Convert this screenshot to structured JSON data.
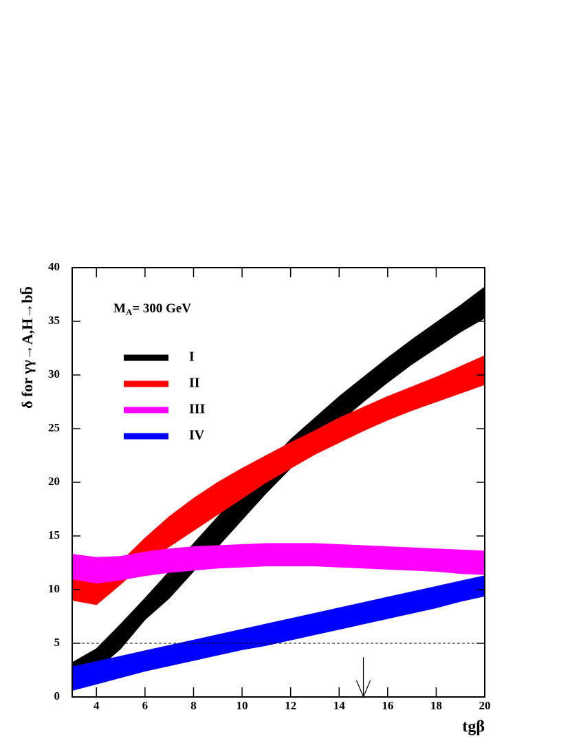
{
  "chart_data": {
    "type": "band",
    "annotation": {
      "main": "M",
      "sub": "A",
      "rest": "= 300 GeV"
    },
    "y_label": "δ  for  γγ→A,H→bb̄",
    "x_label": "tgβ",
    "x": [
      3,
      4,
      5,
      6,
      7,
      8,
      9,
      10,
      11,
      12,
      13,
      14,
      15,
      16,
      17,
      18,
      19,
      20
    ],
    "series": [
      {
        "name": "I",
        "color": "#000000",
        "lower": [
          0.8,
          2.5,
          4.5,
          7.2,
          9.2,
          11.7,
          14,
          16.5,
          19,
          21.3,
          23.5,
          25.6,
          27.5,
          29.3,
          31,
          32.5,
          34,
          35.3
        ],
        "upper": [
          3.2,
          4.5,
          6.8,
          9.2,
          11.7,
          14.3,
          16.8,
          19.2,
          21.6,
          24,
          26,
          28,
          29.8,
          31.6,
          33.3,
          34.9,
          36.5,
          38.2
        ]
      },
      {
        "name": "II",
        "color": "#ff0000",
        "lower": [
          9,
          8.6,
          10.5,
          12.5,
          14,
          15.5,
          17,
          18.5,
          20,
          21.3,
          22.6,
          23.7,
          24.8,
          25.8,
          26.7,
          27.5,
          28.3,
          29.1
        ],
        "upper": [
          11.2,
          10.6,
          12.6,
          14.8,
          16.8,
          18.5,
          20,
          21.3,
          22.5,
          23.7,
          24.8,
          26,
          27,
          28,
          28.9,
          29.8,
          30.8,
          31.8
        ]
      },
      {
        "name": "III",
        "color": "#ff00ff",
        "lower": [
          11,
          10.6,
          10.9,
          11.3,
          11.6,
          11.8,
          12,
          12.1,
          12.2,
          12.2,
          12.2,
          12.1,
          12,
          11.9,
          11.8,
          11.7,
          11.5,
          11.4
        ],
        "upper": [
          13.3,
          13,
          13.1,
          13.5,
          13.8,
          14,
          14.1,
          14.2,
          14.3,
          14.3,
          14.3,
          14.2,
          14.1,
          14,
          13.9,
          13.8,
          13.7,
          13.6
        ]
      },
      {
        "name": "IV",
        "color": "#0000ff",
        "lower": [
          0.6,
          1.2,
          1.8,
          2.4,
          2.9,
          3.4,
          3.9,
          4.4,
          4.8,
          5.3,
          5.8,
          6.3,
          6.8,
          7.3,
          7.8,
          8.3,
          8.9,
          9.4
        ],
        "upper": [
          2.8,
          3.3,
          3.8,
          4.3,
          4.8,
          5.3,
          5.8,
          6.3,
          6.8,
          7.3,
          7.8,
          8.3,
          8.8,
          9.3,
          9.8,
          10.3,
          10.8,
          11.3
        ]
      }
    ],
    "xlim": [
      3,
      20
    ],
    "ylim": [
      0,
      40
    ],
    "xticks": [
      4,
      6,
      8,
      10,
      12,
      14,
      16,
      18,
      20
    ],
    "yticks": [
      0,
      5,
      10,
      15,
      20,
      25,
      30,
      35,
      40
    ],
    "hline": 5,
    "arrow": {
      "x": 15,
      "y": [
        3.7,
        0
      ]
    },
    "legend": "upper left"
  }
}
